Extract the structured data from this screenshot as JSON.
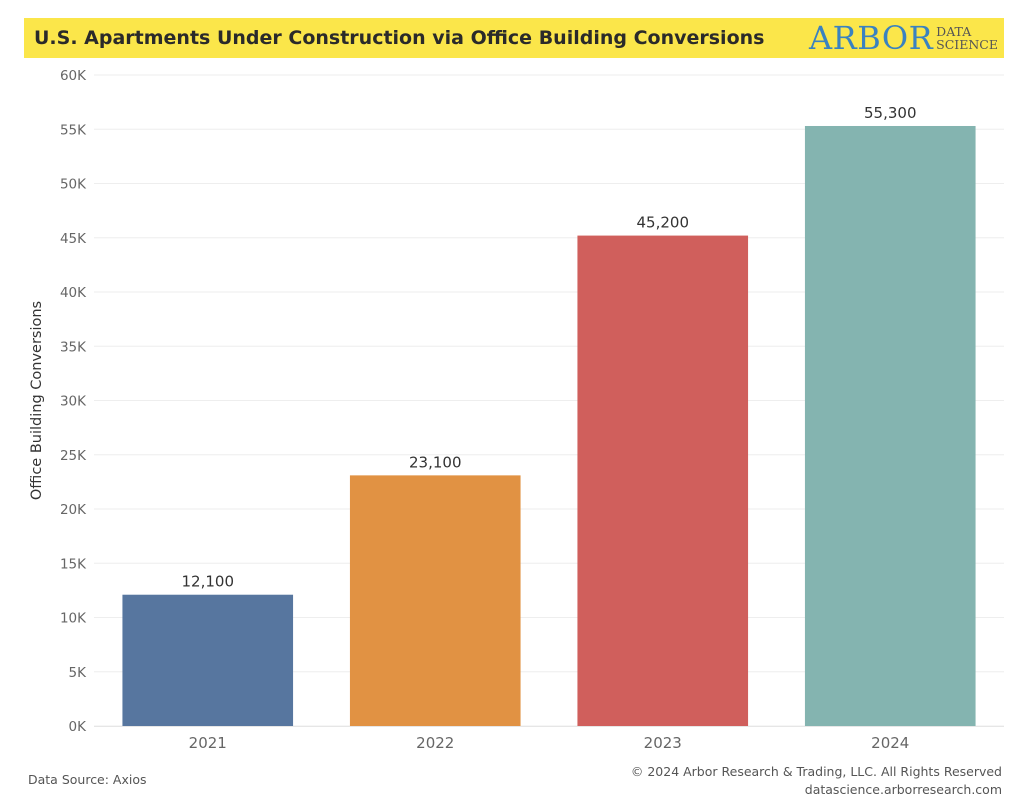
{
  "header": {
    "title": "U.S. Apartments Under Construction via Office Building Conversions",
    "logo_main": "ARBOR",
    "logo_sub_1": "DATA",
    "logo_sub_2": "SCIENCE"
  },
  "chart_data": {
    "type": "bar",
    "categories": [
      "2021",
      "2022",
      "2023",
      "2024"
    ],
    "values": [
      12100,
      23100,
      45200,
      55300
    ],
    "data_labels": [
      "12,100",
      "23,100",
      "45,200",
      "55,300"
    ],
    "bar_colors": [
      "#57769f",
      "#e19243",
      "#d05f5c",
      "#84b4b0"
    ],
    "xlabel": "",
    "ylabel": "Office Building Conversions",
    "ylim": [
      0,
      60000
    ],
    "yticks": [
      0,
      5000,
      10000,
      15000,
      20000,
      25000,
      30000,
      35000,
      40000,
      45000,
      50000,
      55000,
      60000
    ],
    "ytick_labels": [
      "0K",
      "5K",
      "10K",
      "15K",
      "20K",
      "25K",
      "30K",
      "35K",
      "40K",
      "45K",
      "50K",
      "55K",
      "60K"
    ],
    "grid": true,
    "gridline_color": "#eeeeee",
    "legend": "none"
  },
  "footer": {
    "source": "Data Source: Axios",
    "copyright": "© 2024 Arbor Research & Trading, LLC. All Rights Reserved",
    "website": "datascience.arborresearch.com"
  }
}
